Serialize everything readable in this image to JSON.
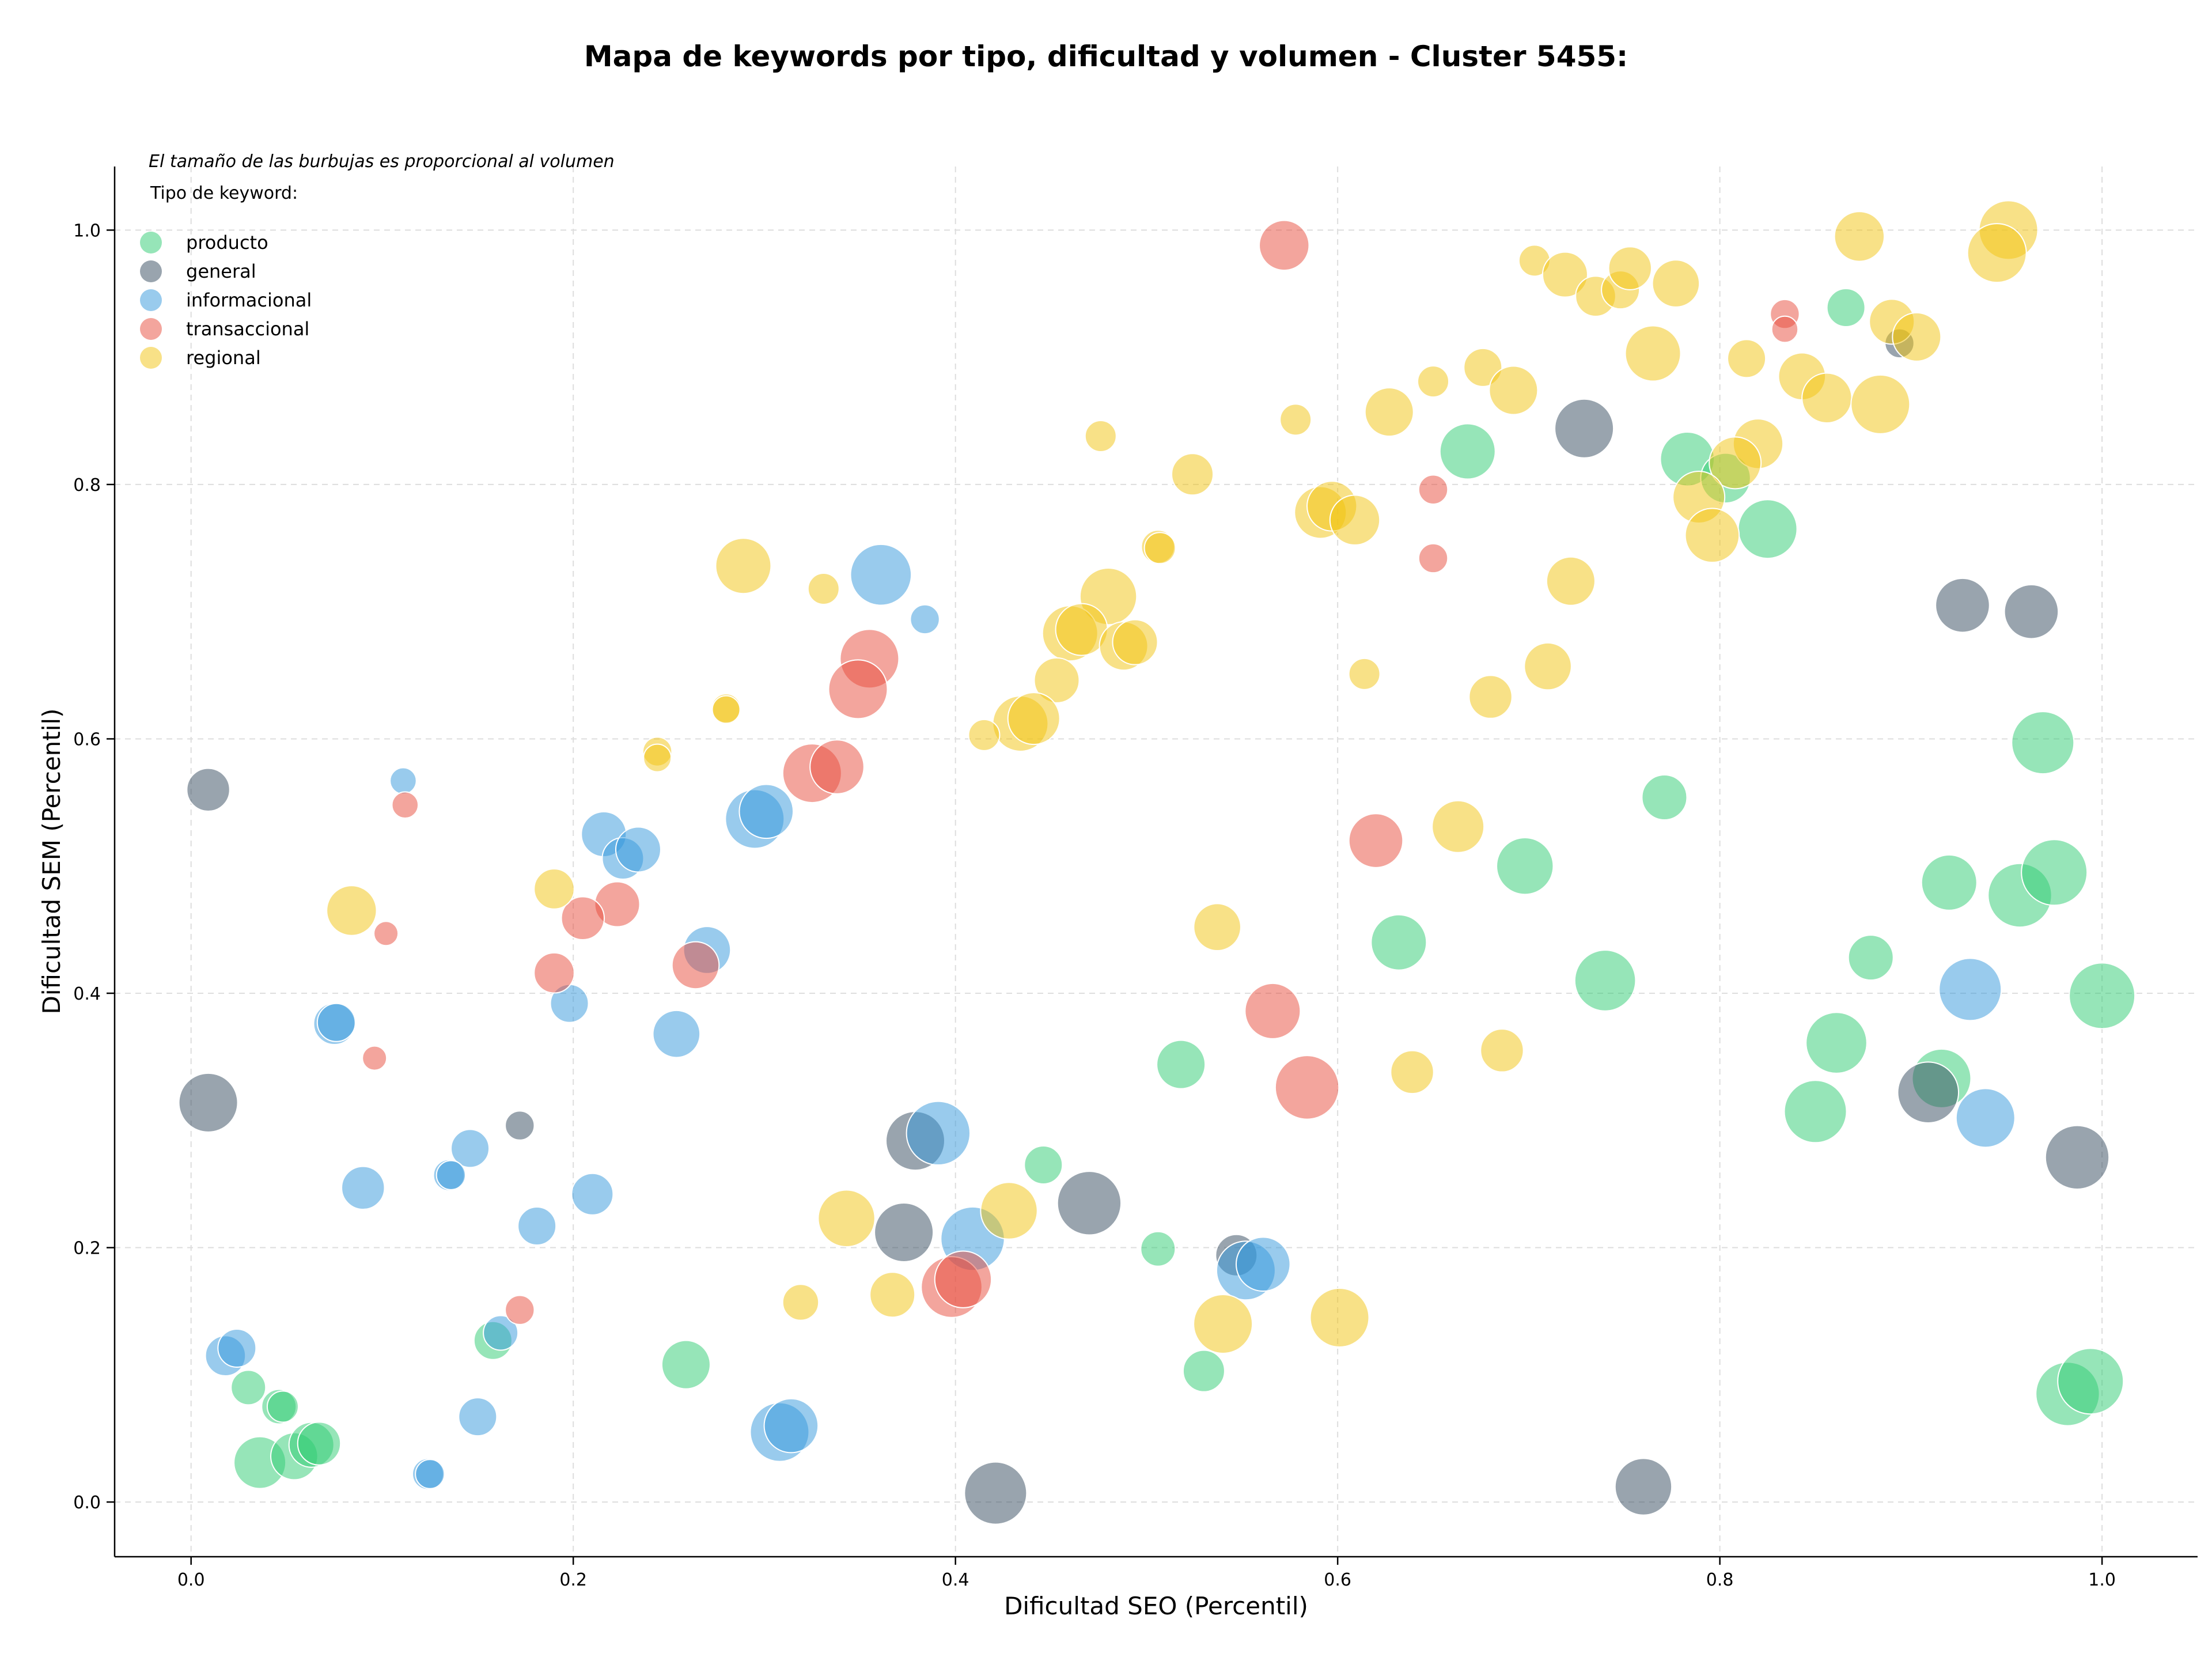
{
  "chart_data": {
    "type": "scatter",
    "title": "Mapa de keywords por tipo, dificultad y volumen - Cluster 5455:",
    "xlabel": "Dificultad SEO (Percentil)",
    "ylabel": "Dificultad SEM (Percentil)",
    "xlim": [
      -0.04,
      1.05
    ],
    "ylim": [
      -0.043,
      1.05
    ],
    "xticks": [
      "0.0",
      "0.2",
      "0.4",
      "0.6",
      "0.8",
      "1.0"
    ],
    "yticks": [
      "0.0",
      "0.2",
      "0.4",
      "0.6",
      "0.8",
      "1.0"
    ],
    "grid": true,
    "note": "El tamaño de las burbujas es proporcional al volumen",
    "legend_title": "Tipo de keyword:",
    "legend_position": "top-left",
    "series": [
      {
        "name": "producto",
        "color": "#2ecc71",
        "points": [
          {
            "x": 0.866,
            "y": 0.939,
            "r": 0.55
          },
          {
            "x": 0.668,
            "y": 0.826,
            "r": 0.8
          },
          {
            "x": 0.783,
            "y": 0.82,
            "r": 0.78
          },
          {
            "x": 0.803,
            "y": 0.805,
            "r": 0.72
          },
          {
            "x": 0.825,
            "y": 0.765,
            "r": 0.85
          },
          {
            "x": 0.969,
            "y": 0.597,
            "r": 0.9
          },
          {
            "x": 0.771,
            "y": 0.554,
            "r": 0.65
          },
          {
            "x": 0.698,
            "y": 0.5,
            "r": 0.82
          },
          {
            "x": 0.92,
            "y": 0.487,
            "r": 0.8
          },
          {
            "x": 0.957,
            "y": 0.477,
            "r": 0.92
          },
          {
            "x": 0.975,
            "y": 0.495,
            "r": 0.95
          },
          {
            "x": 0.632,
            "y": 0.44,
            "r": 0.8
          },
          {
            "x": 0.879,
            "y": 0.428,
            "r": 0.65
          },
          {
            "x": 0.74,
            "y": 0.41,
            "r": 0.88
          },
          {
            "x": 0.861,
            "y": 0.361,
            "r": 0.88
          },
          {
            "x": 1.0,
            "y": 0.398,
            "r": 0.95
          },
          {
            "x": 0.518,
            "y": 0.344,
            "r": 0.7
          },
          {
            "x": 0.916,
            "y": 0.333,
            "r": 0.85
          },
          {
            "x": 0.85,
            "y": 0.307,
            "r": 0.9
          },
          {
            "x": 0.446,
            "y": 0.265,
            "r": 0.55
          },
          {
            "x": 0.506,
            "y": 0.199,
            "r": 0.5
          },
          {
            "x": 0.259,
            "y": 0.108,
            "r": 0.7
          },
          {
            "x": 0.53,
            "y": 0.103,
            "r": 0.6
          },
          {
            "x": 0.158,
            "y": 0.127,
            "r": 0.55
          },
          {
            "x": 0.03,
            "y": 0.09,
            "r": 0.5
          },
          {
            "x": 0.046,
            "y": 0.075,
            "r": 0.5
          },
          {
            "x": 0.048,
            "y": 0.075,
            "r": 0.45
          },
          {
            "x": 0.036,
            "y": 0.031,
            "r": 0.75
          },
          {
            "x": 0.054,
            "y": 0.036,
            "r": 0.68
          },
          {
            "x": 0.063,
            "y": 0.045,
            "r": 0.65
          },
          {
            "x": 0.067,
            "y": 0.046,
            "r": 0.62
          },
          {
            "x": 0.982,
            "y": 0.085,
            "r": 0.92
          },
          {
            "x": 0.994,
            "y": 0.095,
            "r": 0.95
          }
        ]
      },
      {
        "name": "general",
        "color": "#34495e",
        "points": [
          {
            "x": 0.894,
            "y": 0.911,
            "r": 0.42
          },
          {
            "x": 0.729,
            "y": 0.844,
            "r": 0.85
          },
          {
            "x": 0.927,
            "y": 0.705,
            "r": 0.78
          },
          {
            "x": 0.963,
            "y": 0.7,
            "r": 0.78
          },
          {
            "x": 0.009,
            "y": 0.56,
            "r": 0.62
          },
          {
            "x": 0.009,
            "y": 0.314,
            "r": 0.85
          },
          {
            "x": 0.172,
            "y": 0.296,
            "r": 0.42
          },
          {
            "x": 0.379,
            "y": 0.284,
            "r": 0.85
          },
          {
            "x": 0.373,
            "y": 0.212,
            "r": 0.85
          },
          {
            "x": 0.47,
            "y": 0.235,
            "r": 0.92
          },
          {
            "x": 0.547,
            "y": 0.194,
            "r": 0.6
          },
          {
            "x": 0.909,
            "y": 0.322,
            "r": 0.88
          },
          {
            "x": 0.987,
            "y": 0.271,
            "r": 0.92
          },
          {
            "x": 0.421,
            "y": 0.007,
            "r": 0.9
          },
          {
            "x": 0.76,
            "y": 0.012,
            "r": 0.82
          }
        ]
      },
      {
        "name": "informacional",
        "color": "#3498db",
        "points": [
          {
            "x": 0.361,
            "y": 0.729,
            "r": 0.88
          },
          {
            "x": 0.384,
            "y": 0.694,
            "r": 0.42
          },
          {
            "x": 0.111,
            "y": 0.567,
            "r": 0.38
          },
          {
            "x": 0.216,
            "y": 0.525,
            "r": 0.65
          },
          {
            "x": 0.226,
            "y": 0.506,
            "r": 0.6
          },
          {
            "x": 0.234,
            "y": 0.513,
            "r": 0.65
          },
          {
            "x": 0.295,
            "y": 0.537,
            "r": 0.85
          },
          {
            "x": 0.301,
            "y": 0.543,
            "r": 0.78
          },
          {
            "x": 0.27,
            "y": 0.434,
            "r": 0.68
          },
          {
            "x": 0.075,
            "y": 0.376,
            "r": 0.6
          },
          {
            "x": 0.076,
            "y": 0.377,
            "r": 0.55
          },
          {
            "x": 0.198,
            "y": 0.392,
            "r": 0.55
          },
          {
            "x": 0.254,
            "y": 0.368,
            "r": 0.68
          },
          {
            "x": 0.146,
            "y": 0.278,
            "r": 0.55
          },
          {
            "x": 0.09,
            "y": 0.247,
            "r": 0.62
          },
          {
            "x": 0.135,
            "y": 0.257,
            "r": 0.45
          },
          {
            "x": 0.136,
            "y": 0.257,
            "r": 0.42
          },
          {
            "x": 0.21,
            "y": 0.242,
            "r": 0.6
          },
          {
            "x": 0.181,
            "y": 0.217,
            "r": 0.55
          },
          {
            "x": 0.391,
            "y": 0.29,
            "r": 0.92
          },
          {
            "x": 0.409,
            "y": 0.207,
            "r": 0.92
          },
          {
            "x": 0.552,
            "y": 0.182,
            "r": 0.85
          },
          {
            "x": 0.561,
            "y": 0.187,
            "r": 0.78
          },
          {
            "x": 0.931,
            "y": 0.403,
            "r": 0.9
          },
          {
            "x": 0.939,
            "y": 0.302,
            "r": 0.85
          },
          {
            "x": 0.018,
            "y": 0.115,
            "r": 0.58
          },
          {
            "x": 0.024,
            "y": 0.121,
            "r": 0.55
          },
          {
            "x": 0.162,
            "y": 0.133,
            "r": 0.5
          },
          {
            "x": 0.15,
            "y": 0.067,
            "r": 0.55
          },
          {
            "x": 0.124,
            "y": 0.022,
            "r": 0.45
          },
          {
            "x": 0.125,
            "y": 0.022,
            "r": 0.42
          },
          {
            "x": 0.308,
            "y": 0.055,
            "r": 0.85
          },
          {
            "x": 0.314,
            "y": 0.06,
            "r": 0.78
          }
        ]
      },
      {
        "name": "transaccional",
        "color": "#e74c3c",
        "points": [
          {
            "x": 0.572,
            "y": 0.988,
            "r": 0.72
          },
          {
            "x": 0.834,
            "y": 0.934,
            "r": 0.42
          },
          {
            "x": 0.834,
            "y": 0.922,
            "r": 0.38
          },
          {
            "x": 0.65,
            "y": 0.796,
            "r": 0.42
          },
          {
            "x": 0.65,
            "y": 0.742,
            "r": 0.42
          },
          {
            "x": 0.355,
            "y": 0.663,
            "r": 0.85
          },
          {
            "x": 0.349,
            "y": 0.639,
            "r": 0.85
          },
          {
            "x": 0.325,
            "y": 0.573,
            "r": 0.85
          },
          {
            "x": 0.338,
            "y": 0.578,
            "r": 0.78
          },
          {
            "x": 0.112,
            "y": 0.548,
            "r": 0.38
          },
          {
            "x": 0.62,
            "y": 0.52,
            "r": 0.78
          },
          {
            "x": 0.223,
            "y": 0.47,
            "r": 0.65
          },
          {
            "x": 0.205,
            "y": 0.459,
            "r": 0.62
          },
          {
            "x": 0.102,
            "y": 0.447,
            "r": 0.35
          },
          {
            "x": 0.19,
            "y": 0.416,
            "r": 0.58
          },
          {
            "x": 0.264,
            "y": 0.422,
            "r": 0.68
          },
          {
            "x": 0.566,
            "y": 0.386,
            "r": 0.8
          },
          {
            "x": 0.584,
            "y": 0.326,
            "r": 0.92
          },
          {
            "x": 0.096,
            "y": 0.349,
            "r": 0.35
          },
          {
            "x": 0.172,
            "y": 0.151,
            "r": 0.42
          },
          {
            "x": 0.398,
            "y": 0.169,
            "r": 0.88
          },
          {
            "x": 0.404,
            "y": 0.175,
            "r": 0.82
          }
        ]
      },
      {
        "name": "regional",
        "color": "#f1c40f",
        "points": [
          {
            "x": 0.951,
            "y": 1.0,
            "r": 0.85
          },
          {
            "x": 0.945,
            "y": 0.982,
            "r": 0.85
          },
          {
            "x": 0.873,
            "y": 0.995,
            "r": 0.72
          },
          {
            "x": 0.703,
            "y": 0.976,
            "r": 0.45
          },
          {
            "x": 0.719,
            "y": 0.965,
            "r": 0.65
          },
          {
            "x": 0.735,
            "y": 0.948,
            "r": 0.58
          },
          {
            "x": 0.748,
            "y": 0.953,
            "r": 0.55
          },
          {
            "x": 0.753,
            "y": 0.97,
            "r": 0.62
          },
          {
            "x": 0.777,
            "y": 0.958,
            "r": 0.68
          },
          {
            "x": 0.765,
            "y": 0.903,
            "r": 0.8
          },
          {
            "x": 0.89,
            "y": 0.928,
            "r": 0.65
          },
          {
            "x": 0.903,
            "y": 0.916,
            "r": 0.7
          },
          {
            "x": 0.814,
            "y": 0.899,
            "r": 0.55
          },
          {
            "x": 0.843,
            "y": 0.885,
            "r": 0.68
          },
          {
            "x": 0.856,
            "y": 0.868,
            "r": 0.72
          },
          {
            "x": 0.884,
            "y": 0.863,
            "r": 0.85
          },
          {
            "x": 0.65,
            "y": 0.881,
            "r": 0.45
          },
          {
            "x": 0.676,
            "y": 0.892,
            "r": 0.55
          },
          {
            "x": 0.692,
            "y": 0.874,
            "r": 0.7
          },
          {
            "x": 0.627,
            "y": 0.857,
            "r": 0.7
          },
          {
            "x": 0.578,
            "y": 0.851,
            "r": 0.45
          },
          {
            "x": 0.476,
            "y": 0.838,
            "r": 0.45
          },
          {
            "x": 0.524,
            "y": 0.808,
            "r": 0.6
          },
          {
            "x": 0.82,
            "y": 0.832,
            "r": 0.72
          },
          {
            "x": 0.808,
            "y": 0.817,
            "r": 0.75
          },
          {
            "x": 0.789,
            "y": 0.79,
            "r": 0.75
          },
          {
            "x": 0.796,
            "y": 0.76,
            "r": 0.78
          },
          {
            "x": 0.591,
            "y": 0.778,
            "r": 0.75
          },
          {
            "x": 0.597,
            "y": 0.783,
            "r": 0.72
          },
          {
            "x": 0.609,
            "y": 0.772,
            "r": 0.72
          },
          {
            "x": 0.506,
            "y": 0.751,
            "r": 0.48
          },
          {
            "x": 0.507,
            "y": 0.75,
            "r": 0.45
          },
          {
            "x": 0.722,
            "y": 0.724,
            "r": 0.7
          },
          {
            "x": 0.289,
            "y": 0.736,
            "r": 0.8
          },
          {
            "x": 0.331,
            "y": 0.718,
            "r": 0.45
          },
          {
            "x": 0.48,
            "y": 0.712,
            "r": 0.82
          },
          {
            "x": 0.46,
            "y": 0.683,
            "r": 0.8
          },
          {
            "x": 0.466,
            "y": 0.686,
            "r": 0.75
          },
          {
            "x": 0.488,
            "y": 0.673,
            "r": 0.7
          },
          {
            "x": 0.494,
            "y": 0.676,
            "r": 0.65
          },
          {
            "x": 0.614,
            "y": 0.651,
            "r": 0.45
          },
          {
            "x": 0.71,
            "y": 0.657,
            "r": 0.68
          },
          {
            "x": 0.453,
            "y": 0.646,
            "r": 0.65
          },
          {
            "x": 0.68,
            "y": 0.633,
            "r": 0.62
          },
          {
            "x": 0.434,
            "y": 0.612,
            "r": 0.8
          },
          {
            "x": 0.441,
            "y": 0.616,
            "r": 0.75
          },
          {
            "x": 0.415,
            "y": 0.603,
            "r": 0.45
          },
          {
            "x": 0.28,
            "y": 0.624,
            "r": 0.42
          },
          {
            "x": 0.28,
            "y": 0.623,
            "r": 0.4
          },
          {
            "x": 0.244,
            "y": 0.59,
            "r": 0.42
          },
          {
            "x": 0.244,
            "y": 0.585,
            "r": 0.4
          },
          {
            "x": 0.663,
            "y": 0.531,
            "r": 0.75
          },
          {
            "x": 0.084,
            "y": 0.465,
            "r": 0.72
          },
          {
            "x": 0.19,
            "y": 0.482,
            "r": 0.58
          },
          {
            "x": 0.537,
            "y": 0.452,
            "r": 0.68
          },
          {
            "x": 0.686,
            "y": 0.355,
            "r": 0.62
          },
          {
            "x": 0.639,
            "y": 0.338,
            "r": 0.62
          },
          {
            "x": 0.343,
            "y": 0.223,
            "r": 0.82
          },
          {
            "x": 0.428,
            "y": 0.229,
            "r": 0.82
          },
          {
            "x": 0.367,
            "y": 0.163,
            "r": 0.65
          },
          {
            "x": 0.319,
            "y": 0.157,
            "r": 0.52
          },
          {
            "x": 0.54,
            "y": 0.14,
            "r": 0.85
          },
          {
            "x": 0.601,
            "y": 0.145,
            "r": 0.85
          }
        ]
      }
    ]
  }
}
